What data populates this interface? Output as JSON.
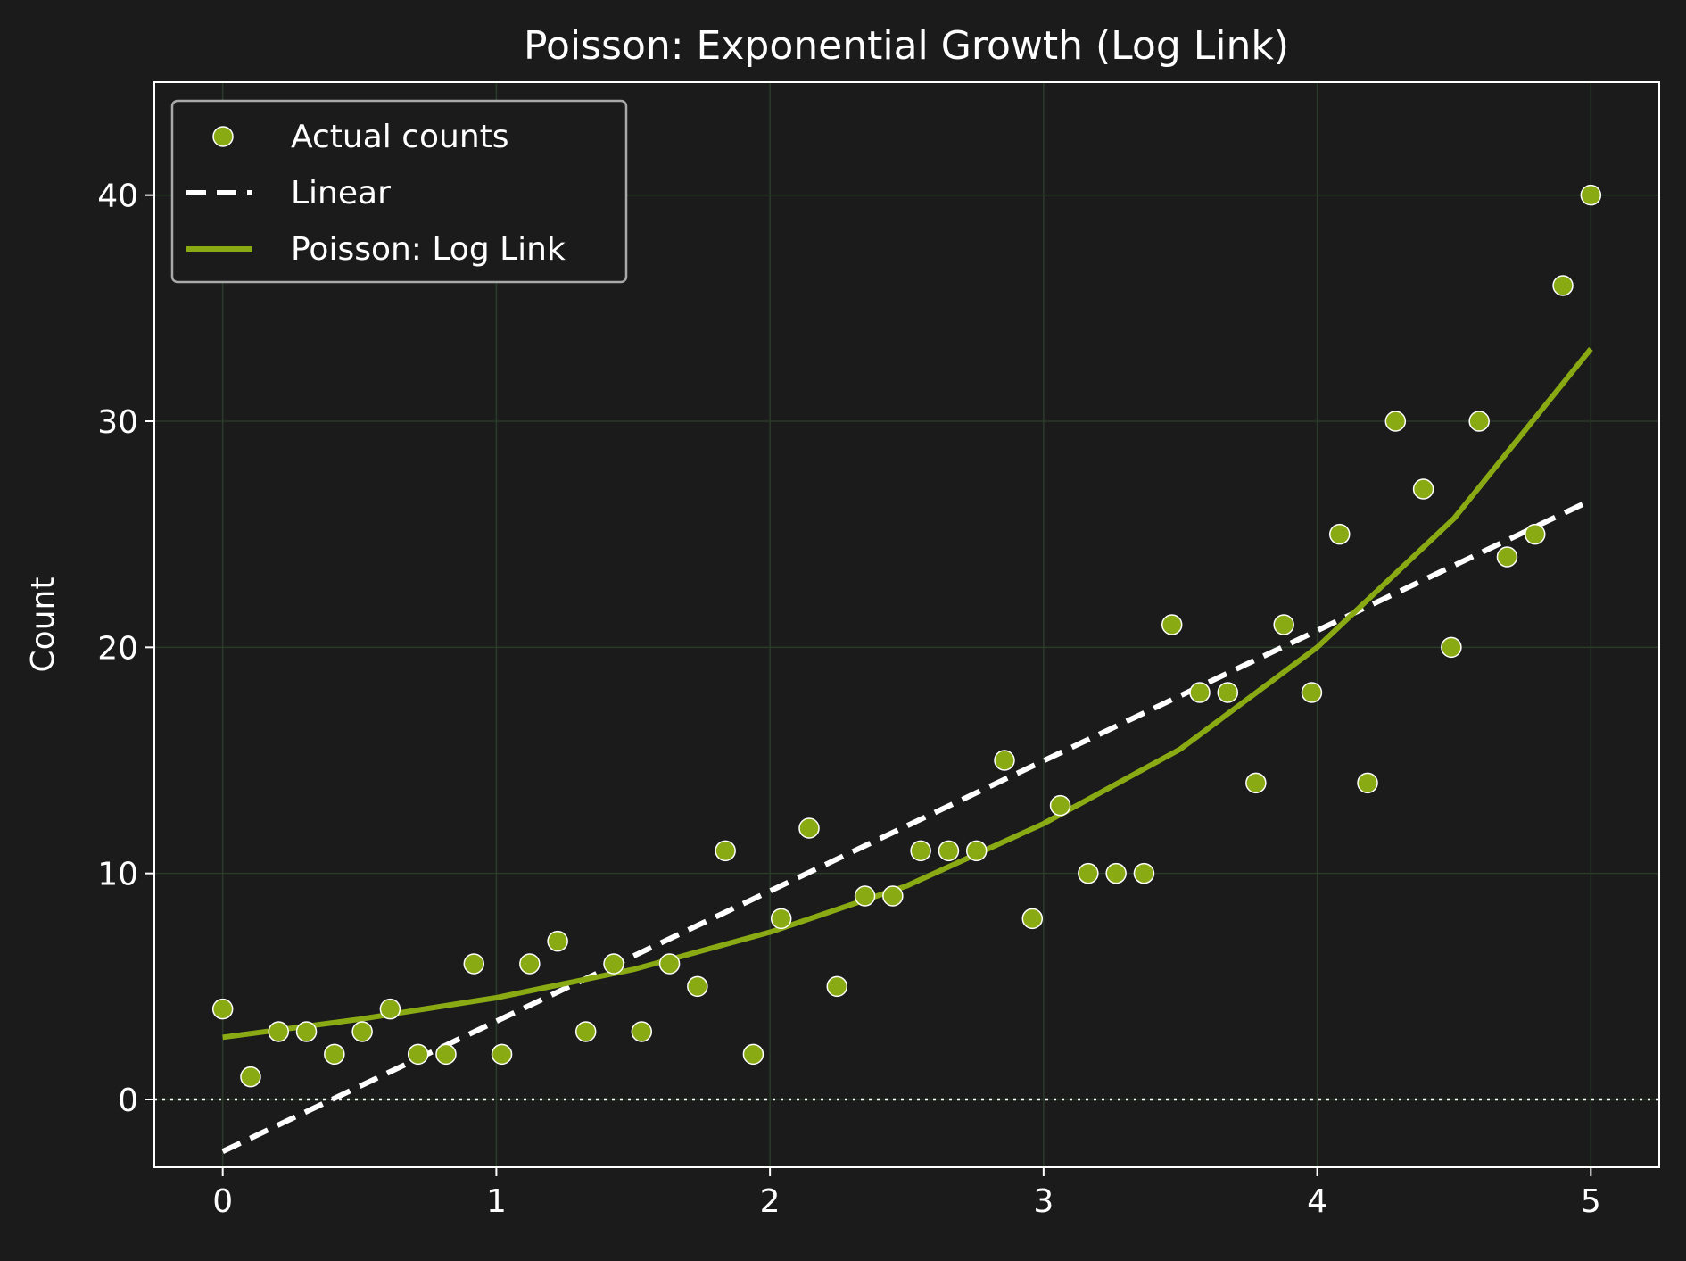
{
  "chart_data": {
    "type": "scatter",
    "title": "Poisson: Exponential Growth (Log Link)",
    "xlabel": "",
    "ylabel": "Count",
    "xlim": [
      -0.25,
      5.25
    ],
    "ylim": [
      -3,
      45
    ],
    "x_ticks": [
      "0",
      "1",
      "2",
      "3",
      "4",
      "5"
    ],
    "y_ticks": [
      "0",
      "10",
      "20",
      "30",
      "40"
    ],
    "grid": true,
    "legend_position": "top-left",
    "background_color": "#1b1b1b",
    "grid_color": "#2a3b2a",
    "series": [
      {
        "name": "Actual counts",
        "kind": "scatter",
        "color": "#8aaa14",
        "x": [
          0.0,
          0.102,
          0.204,
          0.306,
          0.408,
          0.51,
          0.612,
          0.714,
          0.816,
          0.918,
          1.02,
          1.122,
          1.224,
          1.327,
          1.429,
          1.531,
          1.633,
          1.735,
          1.837,
          1.939,
          2.041,
          2.143,
          2.245,
          2.347,
          2.449,
          2.551,
          2.653,
          2.755,
          2.857,
          2.959,
          3.061,
          3.163,
          3.265,
          3.367,
          3.469,
          3.571,
          3.673,
          3.776,
          3.878,
          3.98,
          4.082,
          4.184,
          4.286,
          4.388,
          4.49,
          4.592,
          4.694,
          4.796,
          4.898,
          5.0
        ],
        "y": [
          4,
          1,
          3,
          3,
          2,
          3,
          4,
          2,
          2,
          6,
          2,
          6,
          7,
          3,
          6,
          3,
          6,
          5,
          11,
          2,
          8,
          12,
          5,
          9,
          9,
          11,
          11,
          11,
          15,
          8,
          13,
          10,
          10,
          10,
          21,
          18,
          18,
          14,
          21,
          18,
          25,
          14,
          30,
          27,
          20,
          30,
          24,
          25,
          36,
          40
        ]
      },
      {
        "name": "Linear",
        "kind": "line",
        "style": "dashed",
        "color": "#ffffff",
        "x": [
          0,
          5
        ],
        "y": [
          -2.3,
          26.5
        ]
      },
      {
        "name": "Poisson: Log Link",
        "kind": "line",
        "style": "solid",
        "color": "#8aaa14",
        "x": [
          0,
          0.5,
          1,
          1.5,
          2,
          2.5,
          3,
          3.5,
          4,
          4.5,
          5
        ],
        "y": [
          2.75,
          3.55,
          4.5,
          5.75,
          7.4,
          9.45,
          12.2,
          15.5,
          20.0,
          25.7,
          33.2
        ]
      }
    ],
    "reference_line": {
      "y": 0,
      "style": "dotted",
      "color": "#ffffff"
    }
  }
}
